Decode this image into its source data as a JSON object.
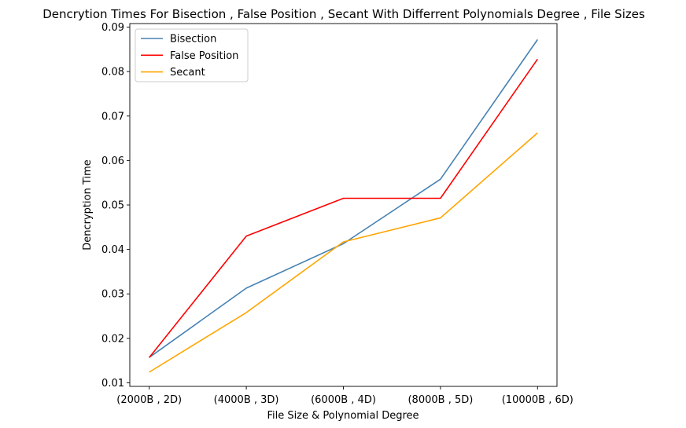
{
  "chart_data": {
    "type": "line",
    "title": "Dencrytion Times For Bisection , False Position , Secant With Differrent Polynomials Degree , File Sizes",
    "xlabel": "File Size & Polynomial Degree",
    "ylabel": "Dencryption Time",
    "categories": [
      "(2000B , 2D)",
      "(4000B , 3D)",
      "(6000B , 4D)",
      "(8000B , 5D)",
      "(10000B , 6D)"
    ],
    "ylim": [
      0.0092,
      0.0908
    ],
    "yticks": [
      0.01,
      0.02,
      0.03,
      0.04,
      0.05,
      0.06,
      0.07,
      0.08,
      0.09
    ],
    "ytick_labels": [
      "0.01",
      "0.02",
      "0.03",
      "0.04",
      "0.05",
      "0.06",
      "0.07",
      "0.08",
      "0.09"
    ],
    "grid": false,
    "legend_position": "top-left",
    "series": [
      {
        "name": "Bisection",
        "color": "#4682b4",
        "values": [
          0.0157,
          0.0313,
          0.0413,
          0.0558,
          0.0872
        ]
      },
      {
        "name": "False Position",
        "color": "#ff0000",
        "values": [
          0.0157,
          0.043,
          0.0515,
          0.0515,
          0.0828
        ]
      },
      {
        "name": "Secant",
        "color": "#ffa500",
        "values": [
          0.0124,
          0.0258,
          0.0417,
          0.0471,
          0.0662
        ]
      }
    ]
  }
}
